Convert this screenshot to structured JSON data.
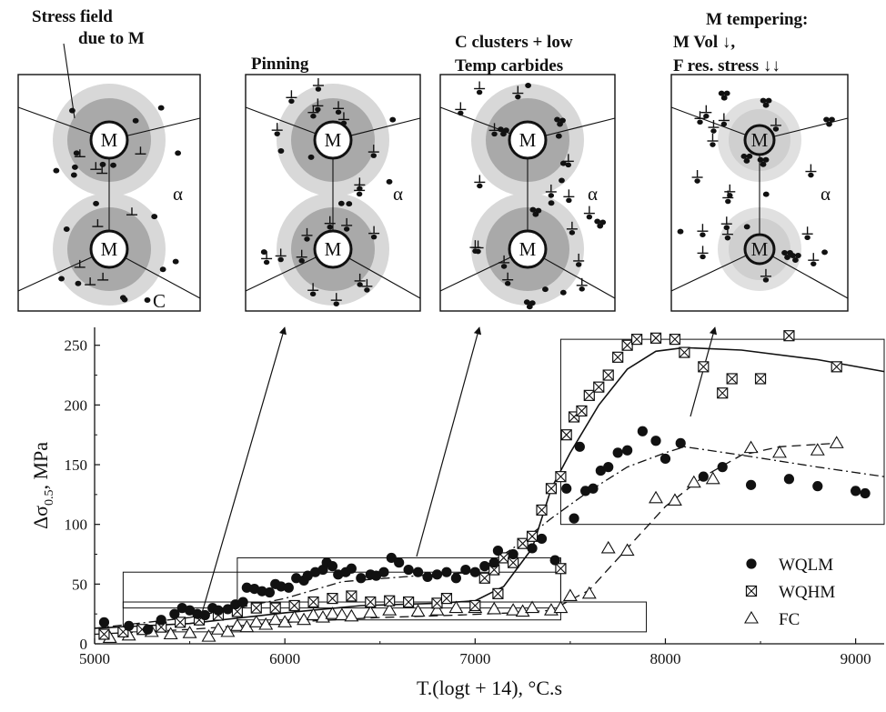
{
  "panels": [
    {
      "title_lines": [
        "Stress field",
        "due to M"
      ],
      "m_label": "M",
      "alpha_label": "α",
      "c_label": "C",
      "style": "stress"
    },
    {
      "title_lines": [
        "Pinning"
      ],
      "m_label": "M",
      "alpha_label": "α",
      "style": "pinning"
    },
    {
      "title_lines": [
        "C clusters + low",
        "Temp carbides"
      ],
      "m_label": "M",
      "alpha_label": "α",
      "style": "clusters"
    },
    {
      "title_lines": [
        "M tempering:",
        "M Vol ↓,",
        "F res. stress ↓↓"
      ],
      "m_label": "M",
      "alpha_label": "α",
      "style": "tempering"
    }
  ],
  "chart_data": {
    "type": "scatter",
    "xlabel": "T.(logt + 14), °C.s",
    "ylabel": "Δσ0.5, MPa",
    "ylabel_main": "Δσ",
    "ylabel_sub": "0.5",
    "ylabel_tail": ", MPa",
    "xlim": [
      5000,
      9150
    ],
    "ylim": [
      0,
      265
    ],
    "xticks": [
      5000,
      6000,
      7000,
      8000,
      9000
    ],
    "yticks": [
      0,
      50,
      100,
      150,
      200,
      250
    ],
    "tick_labels_x": [
      "5000",
      "6000",
      "7000",
      "8000",
      "9000"
    ],
    "tick_labels_y": [
      "0",
      "50",
      "100",
      "150",
      "200",
      "250"
    ],
    "legend_position": "bottom-right",
    "series": [
      {
        "name": "WQLM",
        "marker": "filled-circle",
        "points": [
          [
            5050,
            18
          ],
          [
            5180,
            15
          ],
          [
            5280,
            12
          ],
          [
            5350,
            20
          ],
          [
            5420,
            25
          ],
          [
            5460,
            30
          ],
          [
            5500,
            28
          ],
          [
            5540,
            25
          ],
          [
            5580,
            24
          ],
          [
            5620,
            30
          ],
          [
            5650,
            28
          ],
          [
            5700,
            29
          ],
          [
            5740,
            33
          ],
          [
            5780,
            35
          ],
          [
            5800,
            47
          ],
          [
            5840,
            46
          ],
          [
            5880,
            44
          ],
          [
            5920,
            43
          ],
          [
            5950,
            50
          ],
          [
            5980,
            48
          ],
          [
            6020,
            47
          ],
          [
            6060,
            55
          ],
          [
            6100,
            53
          ],
          [
            6120,
            57
          ],
          [
            6160,
            60
          ],
          [
            6200,
            62
          ],
          [
            6220,
            68
          ],
          [
            6250,
            65
          ],
          [
            6280,
            58
          ],
          [
            6320,
            60
          ],
          [
            6350,
            63
          ],
          [
            6400,
            55
          ],
          [
            6450,
            58
          ],
          [
            6480,
            57
          ],
          [
            6520,
            60
          ],
          [
            6560,
            72
          ],
          [
            6600,
            68
          ],
          [
            6650,
            62
          ],
          [
            6700,
            60
          ],
          [
            6750,
            56
          ],
          [
            6800,
            58
          ],
          [
            6850,
            60
          ],
          [
            6900,
            55
          ],
          [
            6950,
            62
          ],
          [
            7000,
            60
          ],
          [
            7050,
            65
          ],
          [
            7100,
            68
          ],
          [
            7120,
            78
          ],
          [
            7200,
            75
          ],
          [
            7300,
            80
          ],
          [
            7350,
            88
          ],
          [
            7420,
            70
          ],
          [
            7480,
            130
          ],
          [
            7520,
            105
          ],
          [
            7550,
            165
          ],
          [
            7580,
            128
          ],
          [
            7620,
            130
          ],
          [
            7660,
            145
          ],
          [
            7700,
            148
          ],
          [
            7750,
            160
          ],
          [
            7800,
            162
          ],
          [
            7880,
            178
          ],
          [
            7950,
            170
          ],
          [
            8000,
            155
          ],
          [
            8080,
            168
          ],
          [
            8200,
            140
          ],
          [
            8300,
            148
          ],
          [
            8450,
            133
          ],
          [
            8650,
            138
          ],
          [
            8800,
            132
          ],
          [
            9000,
            128
          ],
          [
            9050,
            126
          ]
        ]
      },
      {
        "name": "WQHM",
        "marker": "boxed-x",
        "points": [
          [
            5050,
            8
          ],
          [
            5150,
            10
          ],
          [
            5250,
            12
          ],
          [
            5350,
            14
          ],
          [
            5450,
            18
          ],
          [
            5550,
            20
          ],
          [
            5650,
            24
          ],
          [
            5750,
            27
          ],
          [
            5850,
            30
          ],
          [
            5950,
            30
          ],
          [
            6050,
            32
          ],
          [
            6150,
            35
          ],
          [
            6250,
            38
          ],
          [
            6350,
            40
          ],
          [
            6450,
            35
          ],
          [
            6550,
            36
          ],
          [
            6650,
            35
          ],
          [
            6800,
            34
          ],
          [
            6850,
            38
          ],
          [
            7000,
            32
          ],
          [
            7050,
            55
          ],
          [
            7100,
            62
          ],
          [
            7120,
            42
          ],
          [
            7150,
            72
          ],
          [
            7200,
            68
          ],
          [
            7250,
            84
          ],
          [
            7300,
            90
          ],
          [
            7350,
            112
          ],
          [
            7400,
            130
          ],
          [
            7450,
            140
          ],
          [
            7480,
            175
          ],
          [
            7520,
            190
          ],
          [
            7560,
            195
          ],
          [
            7600,
            208
          ],
          [
            7650,
            215
          ],
          [
            7700,
            225
          ],
          [
            7750,
            240
          ],
          [
            7800,
            250
          ],
          [
            7850,
            255
          ],
          [
            7950,
            256
          ],
          [
            8050,
            255
          ],
          [
            8100,
            244
          ],
          [
            8200,
            232
          ],
          [
            8300,
            210
          ],
          [
            8350,
            222
          ],
          [
            8500,
            222
          ],
          [
            8650,
            258
          ],
          [
            8900,
            232
          ],
          [
            7450,
            63
          ]
        ]
      },
      {
        "name": "FC",
        "marker": "open-triangle",
        "points": [
          [
            5080,
            5
          ],
          [
            5180,
            7
          ],
          [
            5300,
            10
          ],
          [
            5400,
            8
          ],
          [
            5500,
            9
          ],
          [
            5600,
            6
          ],
          [
            5650,
            12
          ],
          [
            5700,
            10
          ],
          [
            5750,
            15
          ],
          [
            5800,
            14
          ],
          [
            5850,
            18
          ],
          [
            5900,
            16
          ],
          [
            5950,
            20
          ],
          [
            6000,
            18
          ],
          [
            6050,
            22
          ],
          [
            6100,
            20
          ],
          [
            6150,
            24
          ],
          [
            6200,
            22
          ],
          [
            6250,
            25
          ],
          [
            6300,
            24
          ],
          [
            6350,
            23
          ],
          [
            6450,
            26
          ],
          [
            6550,
            28
          ],
          [
            6700,
            27
          ],
          [
            6800,
            28
          ],
          [
            6900,
            30
          ],
          [
            7000,
            30
          ],
          [
            7100,
            29
          ],
          [
            7200,
            28
          ],
          [
            7250,
            27
          ],
          [
            7300,
            30
          ],
          [
            7400,
            28
          ],
          [
            7450,
            30
          ],
          [
            7500,
            40
          ],
          [
            7600,
            42
          ],
          [
            7700,
            80
          ],
          [
            7800,
            78
          ],
          [
            7950,
            122
          ],
          [
            8050,
            120
          ],
          [
            8150,
            135
          ],
          [
            8250,
            138
          ],
          [
            8450,
            164
          ],
          [
            8600,
            160
          ],
          [
            8800,
            162
          ],
          [
            8900,
            168
          ]
        ]
      }
    ],
    "fit_curves": {
      "WQLM": [
        [
          5000,
          13
        ],
        [
          5500,
          22
        ],
        [
          6000,
          38
        ],
        [
          6300,
          52
        ],
        [
          6700,
          57
        ],
        [
          7000,
          60
        ],
        [
          7200,
          80
        ],
        [
          7400,
          105
        ],
        [
          7600,
          128
        ],
        [
          7800,
          148
        ],
        [
          8000,
          160
        ],
        [
          8100,
          165
        ],
        [
          8400,
          158
        ],
        [
          8800,
          148
        ],
        [
          9150,
          140
        ]
      ],
      "WQHM": [
        [
          5000,
          13
        ],
        [
          5500,
          17
        ],
        [
          6000,
          26
        ],
        [
          6400,
          32
        ],
        [
          6800,
          34
        ],
        [
          7000,
          36
        ],
        [
          7150,
          48
        ],
        [
          7300,
          80
        ],
        [
          7400,
          130
        ],
        [
          7500,
          160
        ],
        [
          7650,
          200
        ],
        [
          7800,
          230
        ],
        [
          7950,
          245
        ],
        [
          8100,
          248
        ],
        [
          8400,
          246
        ],
        [
          8800,
          238
        ],
        [
          9150,
          228
        ]
      ],
      "WQLM_dashdot": [
        [
          7200,
          25
        ],
        [
          7500,
          60
        ],
        [
          7700,
          100
        ],
        [
          7900,
          150
        ],
        [
          8050,
          168
        ],
        [
          8300,
          160
        ],
        [
          8600,
          148
        ],
        [
          8900,
          138
        ],
        [
          9150,
          132
        ]
      ],
      "FC": [
        [
          5000,
          8
        ],
        [
          5500,
          12
        ],
        [
          6000,
          18
        ],
        [
          6500,
          22
        ],
        [
          6900,
          24
        ],
        [
          7200,
          26
        ],
        [
          7400,
          28
        ],
        [
          7600,
          45
        ],
        [
          7800,
          80
        ],
        [
          8000,
          115
        ],
        [
          8200,
          140
        ],
        [
          8400,
          158
        ],
        [
          8600,
          165
        ],
        [
          8900,
          168
        ]
      ]
    },
    "boxes": [
      {
        "x0": 5150,
        "x1": 7450,
        "y0": 30,
        "y1": 60
      },
      {
        "x0": 5750,
        "x1": 7450,
        "y0": 20,
        "y1": 72
      },
      {
        "x0": 5150,
        "x1": 7900,
        "y0": 10,
        "y1": 35
      },
      {
        "x0": 7450,
        "x1": 9150,
        "y0": 100,
        "y1": 255
      }
    ]
  }
}
